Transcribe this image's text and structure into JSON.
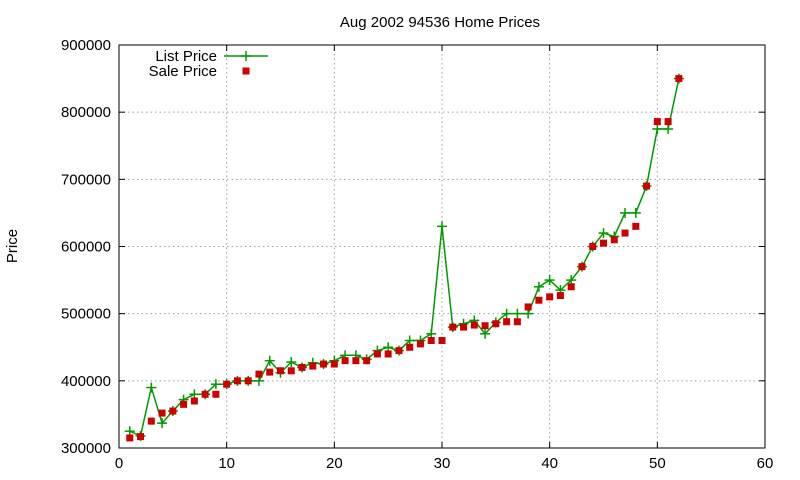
{
  "chart_data": {
    "type": "line",
    "title": "Aug 2002 94536 Home Prices",
    "xlabel": "",
    "ylabel": "Price",
    "xlim": [
      0,
      60
    ],
    "ylim": [
      300000,
      900000
    ],
    "xticks": [
      "0",
      "10",
      "20",
      "30",
      "40",
      "50",
      "60"
    ],
    "yticks": [
      "300000",
      "400000",
      "500000",
      "600000",
      "700000",
      "800000",
      "900000"
    ],
    "grid": true,
    "legend_position": "top-left",
    "series": [
      {
        "name": "List Price",
        "style": "lines+plus-markers",
        "color": "#009900",
        "x": [
          1,
          2,
          3,
          4,
          5,
          6,
          7,
          8,
          9,
          10,
          11,
          12,
          13,
          14,
          15,
          16,
          17,
          18,
          19,
          20,
          21,
          22,
          23,
          24,
          25,
          26,
          27,
          28,
          29,
          30,
          31,
          32,
          33,
          34,
          35,
          36,
          37,
          38,
          39,
          40,
          41,
          42,
          43,
          44,
          45,
          46,
          47,
          48,
          49,
          50,
          51,
          52
        ],
        "y": [
          325000,
          318000,
          390000,
          337000,
          355000,
          372000,
          380000,
          380000,
          395000,
          395000,
          400000,
          400000,
          400000,
          430000,
          412000,
          428000,
          420000,
          427000,
          425000,
          430000,
          438000,
          438000,
          432000,
          445000,
          450000,
          445000,
          460000,
          460000,
          470000,
          630000,
          480000,
          485000,
          490000,
          470000,
          487000,
          500000,
          500000,
          500000,
          540000,
          550000,
          535000,
          550000,
          570000,
          600000,
          620000,
          615000,
          650000,
          650000,
          690000,
          775000,
          775000,
          850000
        ]
      },
      {
        "name": "Sale Price",
        "style": "square-markers",
        "color": "#cc0000",
        "x": [
          1,
          2,
          3,
          4,
          5,
          6,
          7,
          8,
          9,
          10,
          11,
          12,
          13,
          14,
          15,
          16,
          17,
          18,
          19,
          20,
          21,
          22,
          23,
          24,
          25,
          26,
          27,
          28,
          29,
          30,
          31,
          32,
          33,
          34,
          35,
          36,
          37,
          38,
          39,
          40,
          41,
          42,
          43,
          44,
          45,
          46,
          47,
          48,
          49,
          50,
          51,
          52
        ],
        "y": [
          315000,
          317000,
          340000,
          352000,
          355000,
          365000,
          370000,
          380000,
          380000,
          395000,
          400000,
          400000,
          410000,
          413000,
          415000,
          415000,
          420000,
          422000,
          425000,
          425000,
          430000,
          430000,
          430000,
          440000,
          440000,
          445000,
          450000,
          455000,
          460000,
          460000,
          480000,
          480000,
          483000,
          482000,
          485000,
          488000,
          488000,
          510000,
          520000,
          525000,
          527000,
          540000,
          570000,
          600000,
          605000,
          610000,
          620000,
          630000,
          690000,
          786000,
          786000,
          850000
        ]
      }
    ]
  }
}
